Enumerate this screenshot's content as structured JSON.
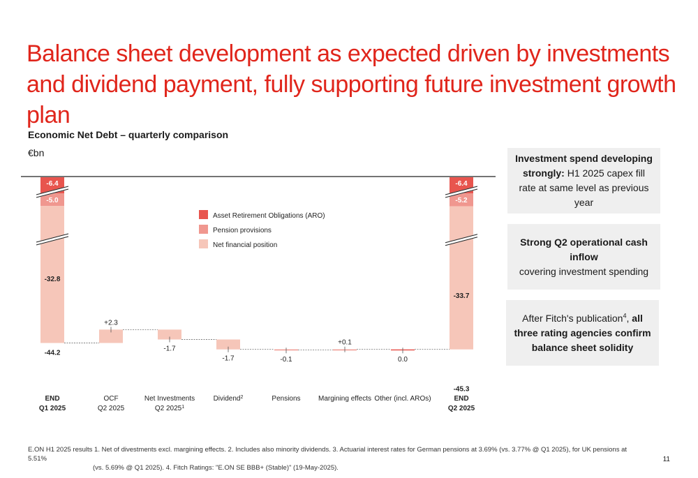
{
  "title": "Balance sheet development as expected driven by investments and dividend payment, fully supporting future investment growth plan",
  "chart_title": "Economic Net Debt – quarterly comparison",
  "unit": "€bn",
  "colors": {
    "aro": "#e8554e",
    "pension": "#f0978f",
    "net_financial": "#f6c6b9",
    "title": "#e0251b"
  },
  "chart_data": {
    "type": "bar",
    "subtype": "waterfall",
    "categories": [
      {
        "line1": "END",
        "line2": "Q1 2025",
        "bold": true
      },
      {
        "line1": "OCF",
        "line2": "Q2 2025",
        "bold": false
      },
      {
        "line1": "Net Investments",
        "line2": "Q2 2025",
        "sup2": "1",
        "bold": false
      },
      {
        "line1": "Dividend",
        "sup1": "2",
        "line2": "",
        "bold": false
      },
      {
        "line1": "Pensions",
        "line2": "",
        "bold": false
      },
      {
        "line1": "Margining effects",
        "line2": "",
        "bold": false
      },
      {
        "line1": "Other (incl. AROs)",
        "line2": "",
        "bold": false
      },
      {
        "line1": "END",
        "line2": "Q2 2025",
        "bold": true
      }
    ],
    "series": [
      {
        "name": "Asset Retirement Obligations (ARO)",
        "values": [
          -6.4,
          null,
          null,
          null,
          null,
          null,
          null,
          -6.4
        ]
      },
      {
        "name": "Pension provisions",
        "values": [
          -5.0,
          null,
          null,
          null,
          null,
          null,
          null,
          -5.2
        ]
      },
      {
        "name": "Net financial position",
        "values": [
          -32.8,
          null,
          null,
          null,
          null,
          null,
          null,
          -33.7
        ]
      }
    ],
    "deltas": [
      null,
      2.3,
      -1.7,
      -1.7,
      -0.1,
      0.1,
      0.0,
      null
    ],
    "labels": {
      "start_aro": "-6.4",
      "start_pension": "-5.0",
      "start_net": "-32.8",
      "start_total": "-44.2",
      "ocf": "+2.3",
      "netinv": "-1.7",
      "dividend": "-1.7",
      "pensions": "-0.1",
      "margining": "+0.1",
      "other": "0.0",
      "end_aro": "-6.4",
      "end_pension": "-5.2",
      "end_net": "-33.7",
      "end_total": "-45.3"
    },
    "totals": [
      -44.2,
      null,
      null,
      null,
      null,
      null,
      null,
      -45.3
    ],
    "legend": [
      "Asset Retirement Obligations (ARO)",
      "Pension provisions",
      "Net financial position"
    ]
  },
  "boxes": {
    "box1": {
      "bold": "Investment spend developing strongly:",
      "text": " H1 2025 capex fill rate at same level as previous year"
    },
    "box2": {
      "bold": "Strong Q2 operational cash inflow",
      "text": "covering investment spending"
    },
    "box3": {
      "pre": "After Fitch's publication",
      "sup": "4",
      "mid": ", ",
      "bold": "all three rating agencies confirm balance sheet solidity"
    }
  },
  "footer": {
    "line1": "E.ON H1 2025 results    1. Net of divestments excl. margining effects.    2. Includes also minority dividends.    3. Actuarial interest rates for German pensions at 3.69%  (vs. 3.77% @ Q1 2025), for UK pensions at 5.51%",
    "line2": "(vs. 5.69% @ Q1 2025).    4. Fitch Ratings: \"E.ON SE BBB+ (Stable)\" (19-May-2025)."
  },
  "page_number": "11"
}
